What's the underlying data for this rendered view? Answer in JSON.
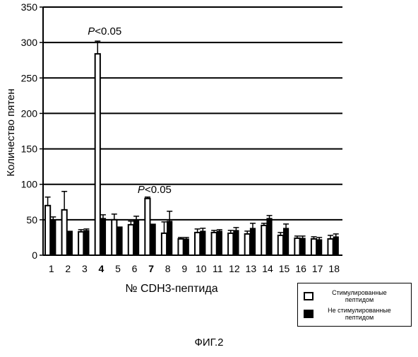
{
  "chart_data": {
    "type": "bar",
    "xlabel": "№ CDH3-пептида",
    "ylabel": "Количество пятен",
    "ylim": [
      0,
      350
    ],
    "yticks": [
      0,
      50,
      100,
      150,
      200,
      250,
      300,
      350
    ],
    "grid": true,
    "legend_position": "bottom-right",
    "categories": [
      "1",
      "2",
      "3",
      "4",
      "5",
      "6",
      "7",
      "8",
      "9",
      "10",
      "11",
      "12",
      "13",
      "14",
      "15",
      "16",
      "17",
      "18"
    ],
    "bold_categories": [
      "4",
      "7"
    ],
    "series": [
      {
        "name": "Стимулированные пептидом",
        "color": "#ffffff",
        "values": [
          70,
          64,
          33,
          284,
          50,
          43,
          80,
          31,
          23,
          32,
          32,
          31,
          30,
          42,
          28,
          24,
          23,
          23
        ],
        "errors": [
          12,
          26,
          3,
          18,
          8,
          5,
          2,
          16,
          2,
          5,
          3,
          4,
          4,
          3,
          4,
          3,
          3,
          5
        ]
      },
      {
        "name": "Не стимулированные пептидом",
        "color": "#000000",
        "values": [
          50,
          34,
          35,
          52,
          40,
          50,
          44,
          48,
          23,
          34,
          34,
          35,
          38,
          52,
          38,
          24,
          22,
          26
        ],
        "errors": [
          4,
          0,
          2,
          5,
          0,
          5,
          0,
          14,
          2,
          4,
          2,
          4,
          7,
          4,
          6,
          3,
          3,
          4
        ]
      }
    ],
    "annotations": [
      {
        "text_italic": "P",
        "text": "<0.05",
        "category": "4",
        "y_value": 307
      },
      {
        "text_italic": "P",
        "text": "<0.05",
        "category": "7",
        "y_value": 84
      }
    ]
  },
  "legend": {
    "item1_label": "Стимулированные пептидом",
    "item2_label": "Не стимулированные пептидом"
  },
  "caption": "ФИГ.2"
}
